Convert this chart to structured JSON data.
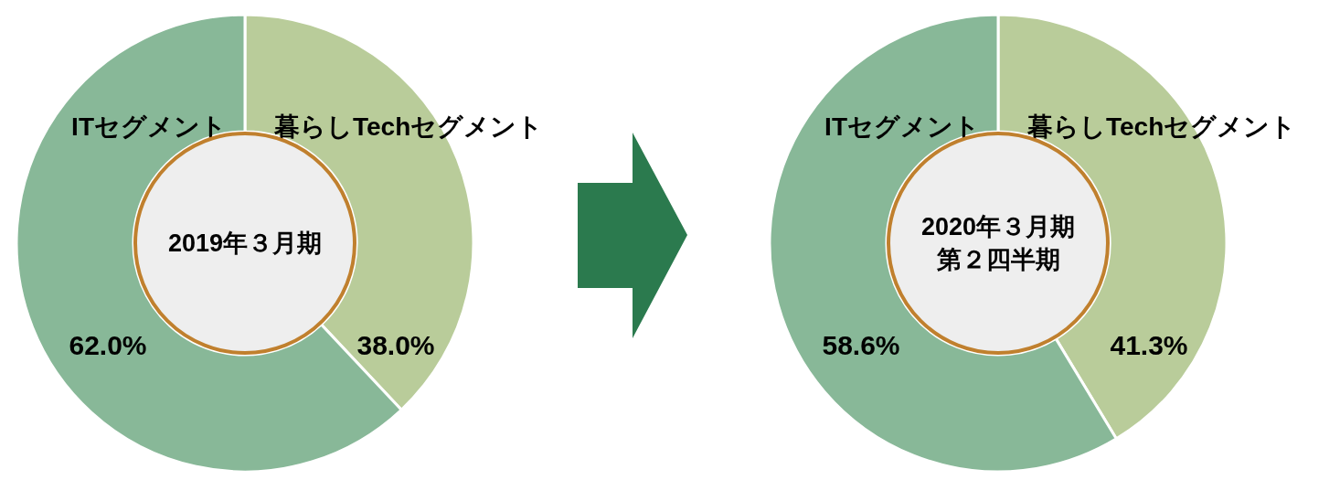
{
  "chart_data": [
    {
      "type": "donut",
      "title": "2019年３月期",
      "categories": [
        "暮らしTechセグメント",
        "ITセグメント"
      ],
      "values": [
        38.0,
        62.0
      ],
      "value_labels": [
        "38.0%",
        "62.0%"
      ],
      "colors": [
        "#b9cc9a",
        "#88b898"
      ],
      "legend": false
    },
    {
      "type": "donut",
      "title": "2020年３月期",
      "subtitle": "第２四半期",
      "categories": [
        "暮らしTechセグメント",
        "ITセグメント"
      ],
      "values": [
        41.3,
        58.6
      ],
      "value_labels": [
        "41.3%",
        "58.6%"
      ],
      "colors": [
        "#b9cc9a",
        "#88b898"
      ],
      "legend": false
    }
  ]
}
